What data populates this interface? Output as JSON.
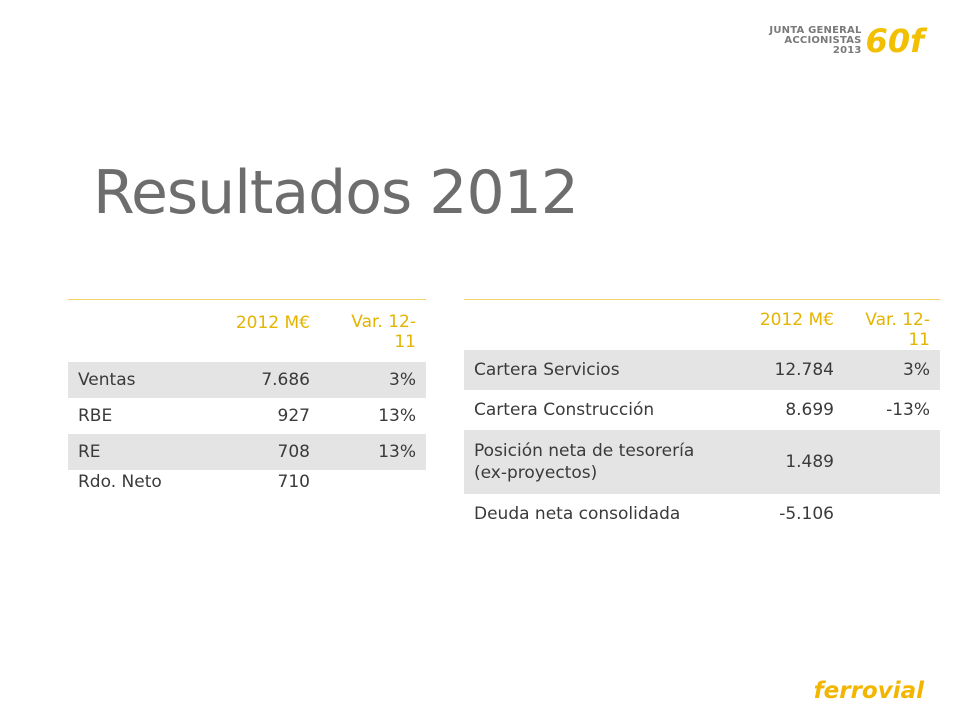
{
  "header": {
    "logo_lines": [
      "JUNTA GENERAL",
      "ACCIONISTAS",
      "2013"
    ],
    "logo_number": "60f"
  },
  "slide": {
    "title": "Resultados 2012"
  },
  "table_left": {
    "headers": [
      "",
      "2012 M€",
      "Var. 12-11"
    ],
    "rows": [
      {
        "label": "Ventas",
        "value": "7.686",
        "var": "3%"
      },
      {
        "label": "RBE",
        "value": "927",
        "var": "13%"
      },
      {
        "label": "RE",
        "value": "708",
        "var": "13%"
      },
      {
        "label": "Rdo. Neto",
        "value": "710",
        "var": ""
      }
    ]
  },
  "table_right": {
    "headers": [
      "",
      "2012 M€",
      "Var. 12-11"
    ],
    "rows": [
      {
        "label": "Cartera Servicios",
        "value": "12.784",
        "var": "3%"
      },
      {
        "label": "Cartera Construcción",
        "value": "8.699",
        "var": "-13%"
      },
      {
        "label": "Posición neta de tesorería (ex-proyectos)",
        "value": "1.489",
        "var": ""
      },
      {
        "label": "Deuda neta consolidada",
        "value": "-5.106",
        "var": ""
      }
    ]
  },
  "footer": {
    "brand": "ferrovial"
  },
  "colors": {
    "accent": "#f2b600",
    "header_text": "#e3b400",
    "row_shade": "#e4e4e4",
    "title": "#6d6d6d"
  }
}
